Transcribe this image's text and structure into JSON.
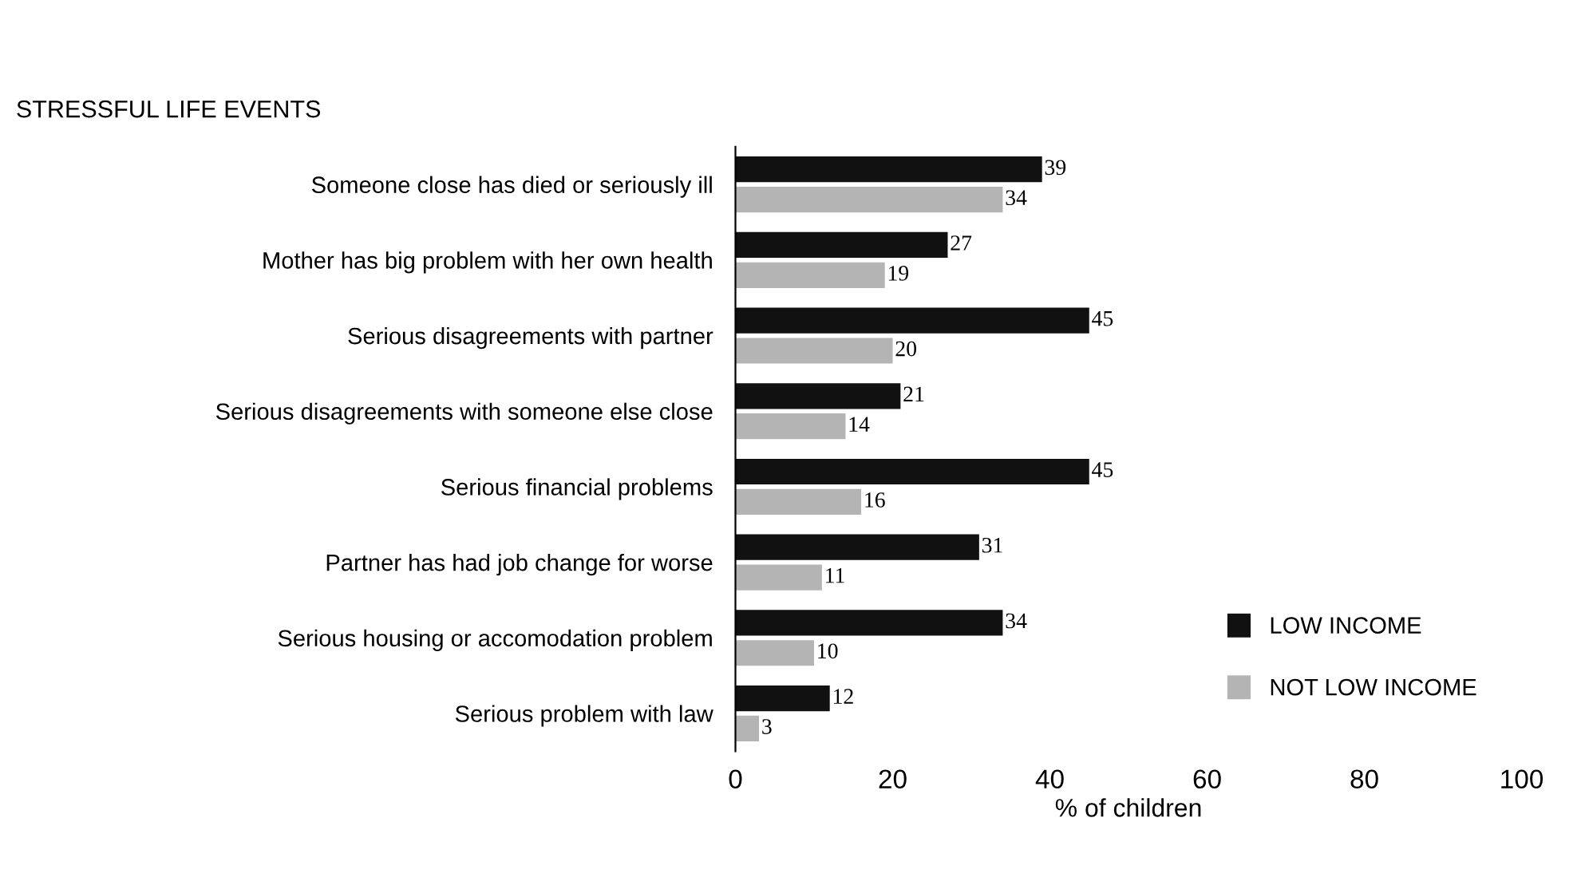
{
  "chart_data": {
    "type": "bar",
    "orientation": "horizontal",
    "title": "STRESSFUL LIFE EVENTS",
    "xlabel": "% of children",
    "categories": [
      "Someone close has died or seriously ill",
      "Mother has big problem with her own health",
      "Serious disagreements with partner",
      "Serious disagreements with someone else close",
      "Serious financial problems",
      "Partner has had job change for worse",
      "Serious housing or accomodation problem",
      "Serious problem with law"
    ],
    "series": [
      {
        "name": "LOW INCOME",
        "color": "#111111",
        "values": [
          39,
          27,
          45,
          21,
          45,
          31,
          34,
          12
        ]
      },
      {
        "name": "NOT LOW INCOME",
        "color": "#b4b4b4",
        "values": [
          34,
          19,
          20,
          14,
          16,
          11,
          10,
          3
        ]
      }
    ],
    "xlim": [
      0,
      100
    ],
    "xticks": [
      0,
      20,
      40,
      60,
      80,
      100
    ],
    "data_labels": true,
    "legend": "bottom right",
    "grid": false
  }
}
